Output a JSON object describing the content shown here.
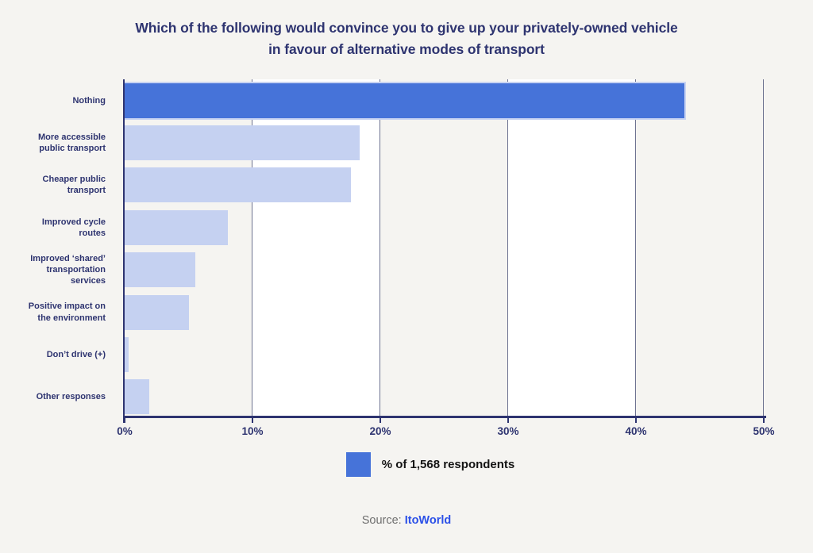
{
  "page": {
    "background": "#f5f4f1",
    "title_line1": "Which of the following would convince you to give up your privately-owned vehicle",
    "title_line2": "in favour of alternative modes of transport",
    "title_color": "#2e3470"
  },
  "chart_data": {
    "type": "bar",
    "orientation": "horizontal",
    "title": "Which of the following would convince you to give up your privately-owned vehicle in favour of alternative modes of transport",
    "categories": [
      "Nothing",
      "More accessible public transport",
      "Cheaper public transport",
      "Improved cycle routes",
      "Improved ‘shared’ transportation services",
      "Positive impact on the environment",
      "Don’t drive (+)",
      "Other responses"
    ],
    "values": [
      43.8,
      18.4,
      17.7,
      8.1,
      5.5,
      5.0,
      0.3,
      1.9
    ],
    "unit": "%",
    "xlim": [
      0,
      50
    ],
    "x_tick_labels": [
      "0%",
      "10%",
      "20%",
      "30%",
      "40%",
      "50%"
    ],
    "grid": "vertical gridlines every 10%; alternating white column bands at 10-20% and 30-40%",
    "legend_position": "bottom-center",
    "highlight_index": 0,
    "bar_color_highlight": "#4673d9",
    "bar_color_default": "#c5d1f1",
    "gridline_color": "#6d7290",
    "axis_color": "#2e3470",
    "legend": [
      {
        "label": "% of 1,568 respondents",
        "color": "#4673d9"
      }
    ]
  },
  "source": {
    "prefix": "Source:",
    "name": "ItoWorld",
    "name_color": "#2b50e8"
  }
}
